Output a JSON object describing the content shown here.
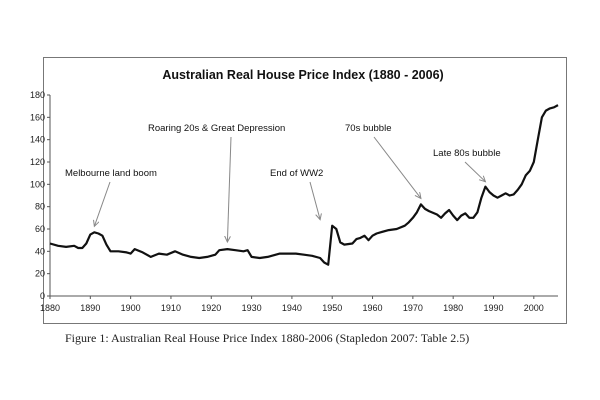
{
  "caption": "Figure 1: Australian Real House Price Index 1880-2006 (Stapledon 2007: Table 2.5)",
  "colors": {
    "line": "#111111",
    "axis": "#555555",
    "annotation": "#888888"
  },
  "chart_data": {
    "type": "line",
    "title": "Australian Real House Price Index (1880 - 2006)",
    "xlabel": "",
    "ylabel": "",
    "xlim": [
      1880,
      2006
    ],
    "ylim": [
      0,
      180
    ],
    "xticks": [
      1880,
      1890,
      1900,
      1910,
      1920,
      1930,
      1940,
      1950,
      1960,
      1970,
      1980,
      1990,
      2000
    ],
    "xtick_labels": [
      "1880",
      "1890",
      "1900",
      "1910",
      "1920",
      "1930",
      "1940",
      "1950",
      "1960",
      "1970",
      "1980",
      "1990",
      "2000"
    ],
    "yticks": [
      0,
      20,
      40,
      60,
      80,
      100,
      120,
      140,
      160,
      180
    ],
    "ytick_labels": [
      "0",
      "20",
      "40",
      "60",
      "80",
      "100",
      "120",
      "140",
      "160",
      "180"
    ],
    "grid": false,
    "legend": "none",
    "series": [
      {
        "x": [
          1880,
          1882,
          1884,
          1886,
          1887,
          1888,
          1889,
          1890,
          1891,
          1892,
          1893,
          1894,
          1895,
          1897,
          1899,
          1900,
          1901,
          1903,
          1905,
          1907,
          1909,
          1911,
          1913,
          1914,
          1915,
          1917,
          1919,
          1921,
          1922,
          1924,
          1926,
          1928,
          1929,
          1930,
          1932,
          1934,
          1935,
          1937,
          1939,
          1941,
          1943,
          1945,
          1947,
          1948,
          1949,
          1950,
          1951,
          1952,
          1953,
          1955,
          1956,
          1957,
          1958,
          1959,
          1960,
          1961,
          1962,
          1964,
          1966,
          1968,
          1969,
          1970,
          1971,
          1972,
          1973,
          1974,
          1976,
          1977,
          1978,
          1979,
          1980,
          1981,
          1982,
          1983,
          1984,
          1985,
          1986,
          1987,
          1988,
          1989,
          1990,
          1991,
          1992,
          1993,
          1994,
          1995,
          1996,
          1997,
          1998,
          1999,
          2000,
          2001,
          2002,
          2003,
          2004,
          2005,
          2006
        ],
        "y": [
          47,
          45,
          44,
          45,
          43,
          43,
          47,
          55,
          57,
          56,
          54,
          46,
          40,
          40,
          39,
          38,
          42,
          39,
          35,
          38,
          37,
          40,
          37,
          36,
          35,
          34,
          35,
          37,
          41,
          42,
          41,
          40,
          41,
          35,
          34,
          35,
          36,
          38,
          38,
          38,
          37,
          36,
          34,
          30,
          28,
          63,
          60,
          48,
          46,
          47,
          51,
          52,
          54,
          50,
          54,
          56,
          57,
          59,
          60,
          63,
          66,
          70,
          75,
          82,
          78,
          76,
          73,
          70,
          74,
          77,
          72,
          68,
          72,
          74,
          70,
          70,
          75,
          88,
          98,
          93,
          90,
          88,
          90,
          92,
          90,
          91,
          95,
          100,
          108,
          112,
          120,
          140,
          160,
          166,
          168,
          169,
          171
        ]
      }
    ],
    "annotations": [
      {
        "text": "Melbourne land boom",
        "target": [
          1891,
          57
        ]
      },
      {
        "text": "Roaring 20s & Great Depression",
        "target": [
          1924,
          43
        ]
      },
      {
        "text": "End of WW2",
        "target": [
          1947,
          63
        ]
      },
      {
        "text": "70s bubble",
        "target": [
          1972,
          82
        ]
      },
      {
        "text": "Late 80s bubble",
        "target": [
          1988,
          97
        ]
      }
    ]
  }
}
